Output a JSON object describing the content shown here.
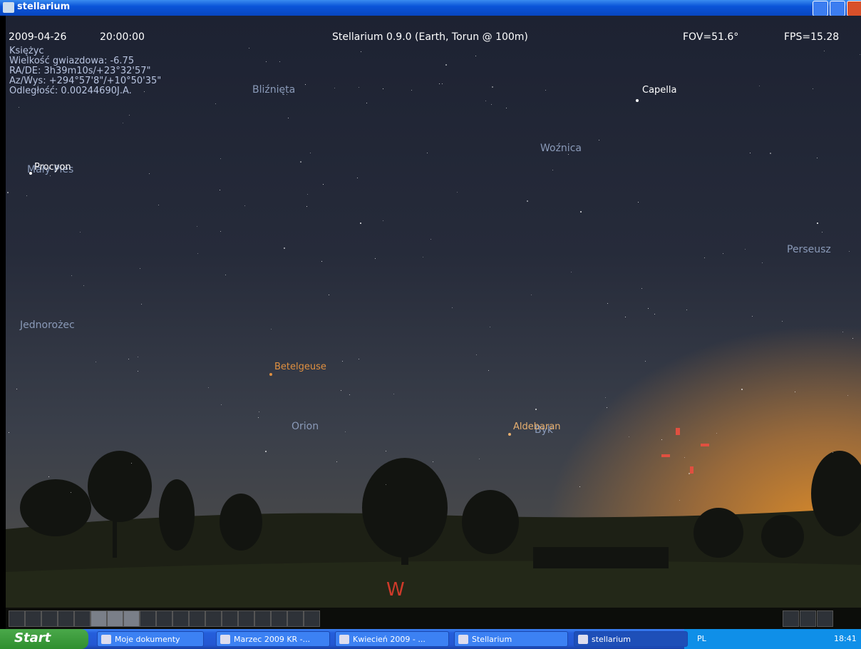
{
  "window": {
    "title": "stellarium"
  },
  "info_bar": {
    "date": "2009-04-26",
    "time": "20:00:00",
    "location": "Stellarium 0.9.0 (Earth, Torun @ 100m)",
    "fov": "FOV=51.6°",
    "fps": "FPS=15.28"
  },
  "object_info": [
    "Księżyc",
    "Wielkość gwiazdowa: -6.75",
    "RA/DE:  3h39m10s/+23°32'57\"",
    "Az/Wys: +294°57'8\"/+10°50'35\"",
    "Odległość: 0.00244690J.A."
  ],
  "sky_labels": {
    "constellations": [
      "Bliźnięta",
      "Woźnica",
      "Mały Pies",
      "Perseusz",
      "Jednorożec",
      "Orion",
      "Byk"
    ],
    "stars": [
      "Capella",
      "Procyon",
      "Betelgeuse",
      "Aldebaran"
    ]
  },
  "cardinal": "W",
  "taskbar": {
    "start": "Start",
    "items": [
      "Moje dokumenty",
      "Marzec 2009 KR -...",
      "Kwiecień 2009 - ...",
      "Stellarium",
      "stellarium"
    ],
    "language": "PL",
    "clock": "18:41"
  }
}
